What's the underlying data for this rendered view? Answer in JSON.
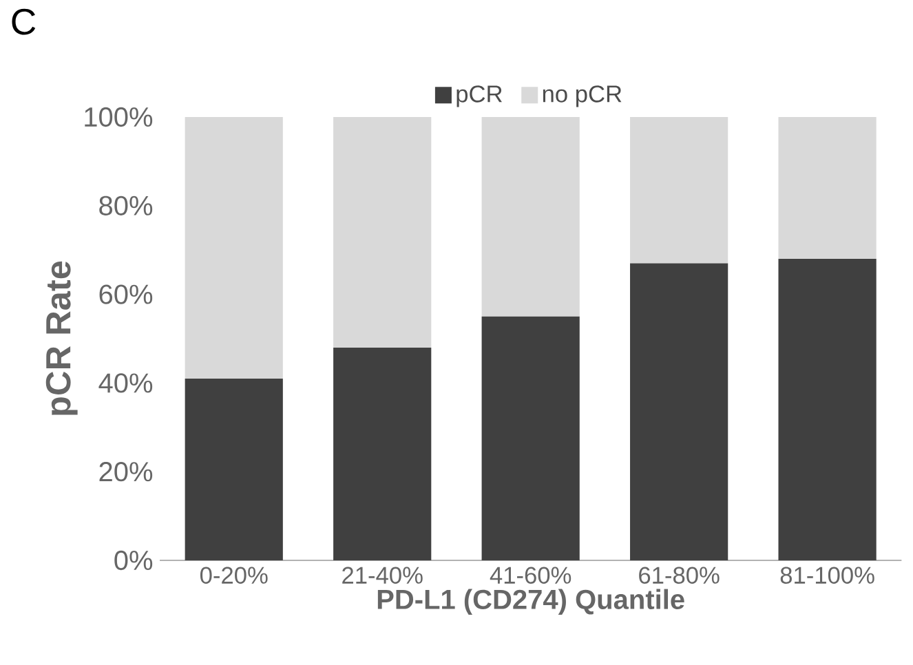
{
  "chart_data": {
    "type": "bar",
    "title": "C",
    "stacked": true,
    "categories": [
      "0-20%",
      "21-40%",
      "41-60%",
      "61-80%",
      "81-100%"
    ],
    "series": [
      {
        "name": "pCR",
        "color": "#404040",
        "values": [
          41,
          48,
          55,
          67,
          68
        ]
      },
      {
        "name": "no pCR",
        "color": "#d9d9d9",
        "values": [
          59,
          52,
          45,
          33,
          32
        ]
      }
    ],
    "xlabel": "PD-L1 (CD274) Quantile",
    "ylabel": "pCR Rate",
    "ylim": [
      0,
      100
    ],
    "yticks": [
      {
        "value": 0,
        "label": "0%"
      },
      {
        "value": 20,
        "label": "20%"
      },
      {
        "value": 40,
        "label": "40%"
      },
      {
        "value": 60,
        "label": "60%"
      },
      {
        "value": 80,
        "label": "80%"
      },
      {
        "value": 100,
        "label": "100%"
      }
    ],
    "grid": false,
    "legend": "top"
  }
}
